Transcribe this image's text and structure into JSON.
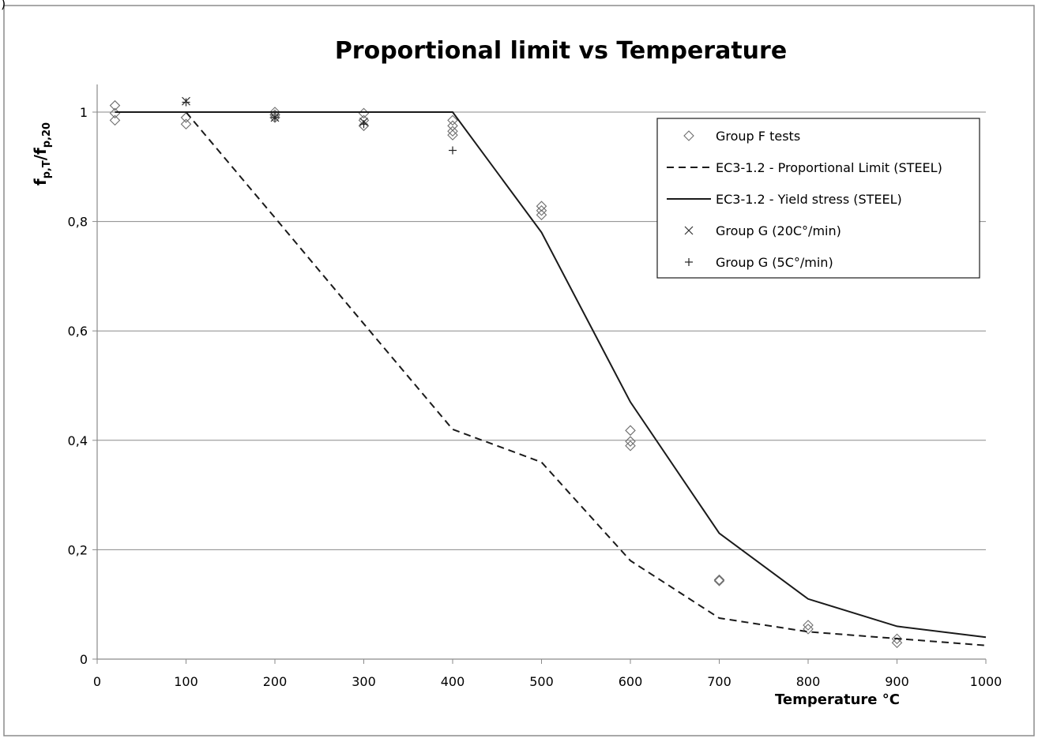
{
  "corner_mark": ")",
  "chart_data": {
    "type": "scatter",
    "title": "Proportional limit vs Temperature",
    "xlabel": "Temperature °C",
    "ylabel": "f_{p,T}/f_{p,20}",
    "ylabel_parts": {
      "main": "f",
      "sub1": "p,T",
      "slash": "/f",
      "sub2": "p,20"
    },
    "xlim": [
      0,
      1000
    ],
    "ylim": [
      0,
      1.05
    ],
    "grid": "horizontal",
    "legend_position": "top-right",
    "x_ticks": [
      {
        "value": 0,
        "label": "0"
      },
      {
        "value": 100,
        "label": "100"
      },
      {
        "value": 200,
        "label": "200"
      },
      {
        "value": 300,
        "label": "300"
      },
      {
        "value": 400,
        "label": "400"
      },
      {
        "value": 500,
        "label": "500"
      },
      {
        "value": 600,
        "label": "600"
      },
      {
        "value": 700,
        "label": "700"
      },
      {
        "value": 800,
        "label": "800"
      },
      {
        "value": 900,
        "label": "900"
      },
      {
        "value": 1000,
        "label": "1000"
      }
    ],
    "y_ticks": [
      {
        "value": 0,
        "label": "0"
      },
      {
        "value": 0.2,
        "label": "0,2"
      },
      {
        "value": 0.4,
        "label": "0,4"
      },
      {
        "value": 0.6,
        "label": "0,6"
      },
      {
        "value": 0.8,
        "label": "0,8"
      },
      {
        "value": 1,
        "label": "1"
      }
    ],
    "series": [
      {
        "name": "Group F tests",
        "kind": "scatter",
        "marker": "diamond",
        "points": [
          [
            20,
            1.012
          ],
          [
            20,
            0.998
          ],
          [
            20,
            0.985
          ],
          [
            100,
            0.99
          ],
          [
            100,
            0.978
          ],
          [
            200,
            1.0
          ],
          [
            200,
            0.995
          ],
          [
            200,
            0.99
          ],
          [
            300,
            0.998
          ],
          [
            300,
            0.985
          ],
          [
            300,
            0.975
          ],
          [
            400,
            0.985
          ],
          [
            400,
            0.975
          ],
          [
            400,
            0.965
          ],
          [
            400,
            0.958
          ],
          [
            500,
            0.828
          ],
          [
            500,
            0.82
          ],
          [
            500,
            0.812
          ],
          [
            600,
            0.418
          ],
          [
            600,
            0.398
          ],
          [
            600,
            0.39
          ],
          [
            700,
            0.145
          ],
          [
            700,
            0.143
          ],
          [
            800,
            0.062
          ],
          [
            800,
            0.055
          ],
          [
            900,
            0.037
          ],
          [
            900,
            0.03
          ]
        ]
      },
      {
        "name": "EC3-1.2 - Proportional Limit (STEEL)",
        "kind": "line",
        "dash": "dashed",
        "points": [
          [
            20,
            1.0
          ],
          [
            100,
            1.0
          ],
          [
            200,
            0.807
          ],
          [
            300,
            0.613
          ],
          [
            400,
            0.42
          ],
          [
            500,
            0.36
          ],
          [
            600,
            0.18
          ],
          [
            700,
            0.075
          ],
          [
            800,
            0.05
          ],
          [
            900,
            0.0375
          ],
          [
            1000,
            0.025
          ]
        ]
      },
      {
        "name": "EC3-1.2 - Yield stress (STEEL)",
        "kind": "line",
        "dash": "solid",
        "points": [
          [
            20,
            1.0
          ],
          [
            100,
            1.0
          ],
          [
            200,
            1.0
          ],
          [
            300,
            1.0
          ],
          [
            400,
            1.0
          ],
          [
            500,
            0.78
          ],
          [
            600,
            0.47
          ],
          [
            700,
            0.23
          ],
          [
            800,
            0.11
          ],
          [
            900,
            0.06
          ],
          [
            1000,
            0.04
          ]
        ]
      },
      {
        "name": "Group G (20C°/min)",
        "kind": "scatter",
        "marker": "x",
        "points": [
          [
            100,
            1.02
          ],
          [
            200,
            0.99
          ],
          [
            300,
            0.982
          ]
        ]
      },
      {
        "name": "Group G (5C°/min)",
        "kind": "scatter",
        "marker": "plus",
        "points": [
          [
            100,
            1.018
          ],
          [
            200,
            0.99
          ],
          [
            300,
            0.978
          ],
          [
            400,
            0.93
          ]
        ]
      }
    ]
  }
}
